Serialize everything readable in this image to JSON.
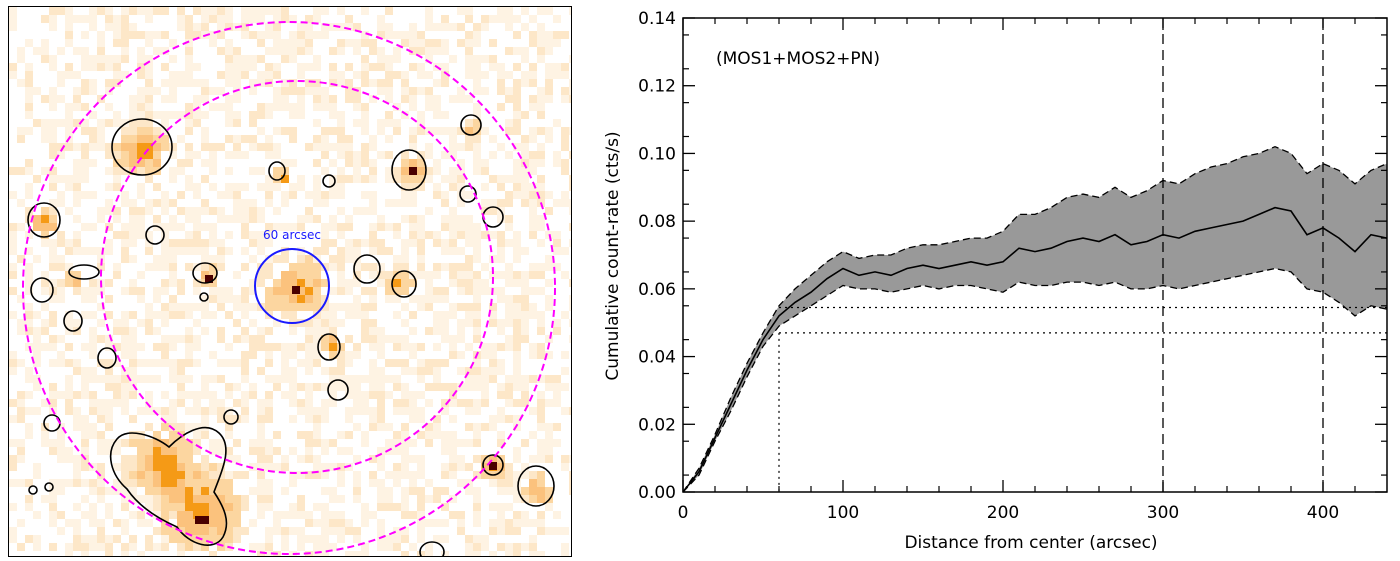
{
  "image_panel": {
    "scale_label": "60 arcsec",
    "colors": {
      "annulus": "#ff00ff",
      "scale_circle": "#1a1aff",
      "source_contour": "#000000",
      "hot": "#f59a16",
      "warm": "#fcd6a0",
      "peak": "#4a0000"
    }
  },
  "chart_data": {
    "type": "line",
    "annotation": "(MOS1+MOS2+PN)",
    "xlabel": "Distance from center (arcsec)",
    "ylabel": "Cumulative count-rate (cts/s)",
    "xlim": [
      0,
      440
    ],
    "ylim": [
      0,
      0.14
    ],
    "xticks": [
      0,
      100,
      200,
      300,
      400
    ],
    "yticks": [
      0.0,
      0.02,
      0.04,
      0.06,
      0.08,
      0.1,
      0.12,
      0.14
    ],
    "x_tick_labels": [
      "0",
      "100",
      "200",
      "300",
      "400"
    ],
    "y_tick_labels": [
      "0.00",
      "0.02",
      "0.04",
      "0.06",
      "0.08",
      "0.10",
      "0.12",
      "0.14"
    ],
    "series": [
      {
        "style": "solid",
        "x": [
          0,
          10,
          20,
          30,
          40,
          50,
          60,
          70,
          80,
          90,
          100,
          110,
          120,
          130,
          140,
          150,
          160,
          170,
          180,
          190,
          200,
          210,
          220,
          230,
          240,
          250,
          260,
          270,
          280,
          290,
          300,
          310,
          320,
          330,
          340,
          350,
          360,
          370,
          380,
          390,
          400,
          410,
          420,
          430,
          440
        ],
        "y": [
          0.0,
          0.006,
          0.016,
          0.026,
          0.036,
          0.045,
          0.052,
          0.056,
          0.059,
          0.063,
          0.066,
          0.064,
          0.065,
          0.064,
          0.066,
          0.067,
          0.066,
          0.067,
          0.068,
          0.067,
          0.068,
          0.072,
          0.071,
          0.072,
          0.074,
          0.075,
          0.074,
          0.076,
          0.073,
          0.074,
          0.076,
          0.075,
          0.077,
          0.078,
          0.079,
          0.08,
          0.082,
          0.084,
          0.083,
          0.076,
          0.078,
          0.075,
          0.071,
          0.076,
          0.075
        ]
      }
    ],
    "error_band": {
      "fill": "#999999",
      "upper": [
        0.0,
        0.007,
        0.017,
        0.028,
        0.038,
        0.047,
        0.055,
        0.06,
        0.064,
        0.068,
        0.071,
        0.069,
        0.07,
        0.07,
        0.072,
        0.073,
        0.073,
        0.074,
        0.075,
        0.075,
        0.077,
        0.082,
        0.082,
        0.084,
        0.087,
        0.088,
        0.087,
        0.09,
        0.087,
        0.089,
        0.092,
        0.091,
        0.094,
        0.096,
        0.097,
        0.099,
        0.1,
        0.102,
        0.1,
        0.094,
        0.097,
        0.095,
        0.091,
        0.095,
        0.097
      ],
      "lower": [
        0.0,
        0.005,
        0.015,
        0.024,
        0.034,
        0.043,
        0.049,
        0.052,
        0.055,
        0.058,
        0.061,
        0.06,
        0.06,
        0.059,
        0.06,
        0.061,
        0.06,
        0.061,
        0.061,
        0.06,
        0.059,
        0.062,
        0.061,
        0.061,
        0.062,
        0.062,
        0.061,
        0.062,
        0.06,
        0.06,
        0.061,
        0.06,
        0.061,
        0.062,
        0.063,
        0.064,
        0.065,
        0.066,
        0.065,
        0.06,
        0.059,
        0.056,
        0.052,
        0.055,
        0.054
      ]
    },
    "reference_lines": {
      "vertical_dashed": [
        300,
        400
      ],
      "vertical_dotted": [
        60
      ],
      "horizontal_dotted": [
        0.0545,
        0.047
      ]
    }
  }
}
